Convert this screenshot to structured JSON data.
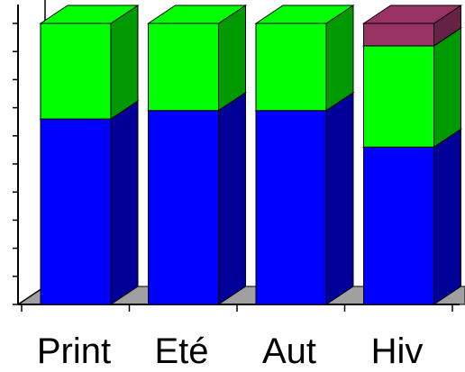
{
  "chart_data": {
    "type": "bar",
    "stacked": true,
    "three_d": true,
    "categories": [
      "Print",
      "Eté",
      "Aut",
      "Hiv"
    ],
    "ylim": [
      0,
      100
    ],
    "series": [
      {
        "color": "#0000ff",
        "side_color": "#000099",
        "values": [
          66,
          69,
          69,
          56
        ]
      },
      {
        "color": "#00ff00",
        "side_color": "#009900",
        "values": [
          34,
          31,
          31,
          36
        ]
      },
      {
        "color": "#993366",
        "side_color": "#662244",
        "values": [
          0,
          0,
          0,
          8
        ]
      }
    ],
    "floor_color": "#a0a0a0",
    "grid": false,
    "legend": "none"
  }
}
